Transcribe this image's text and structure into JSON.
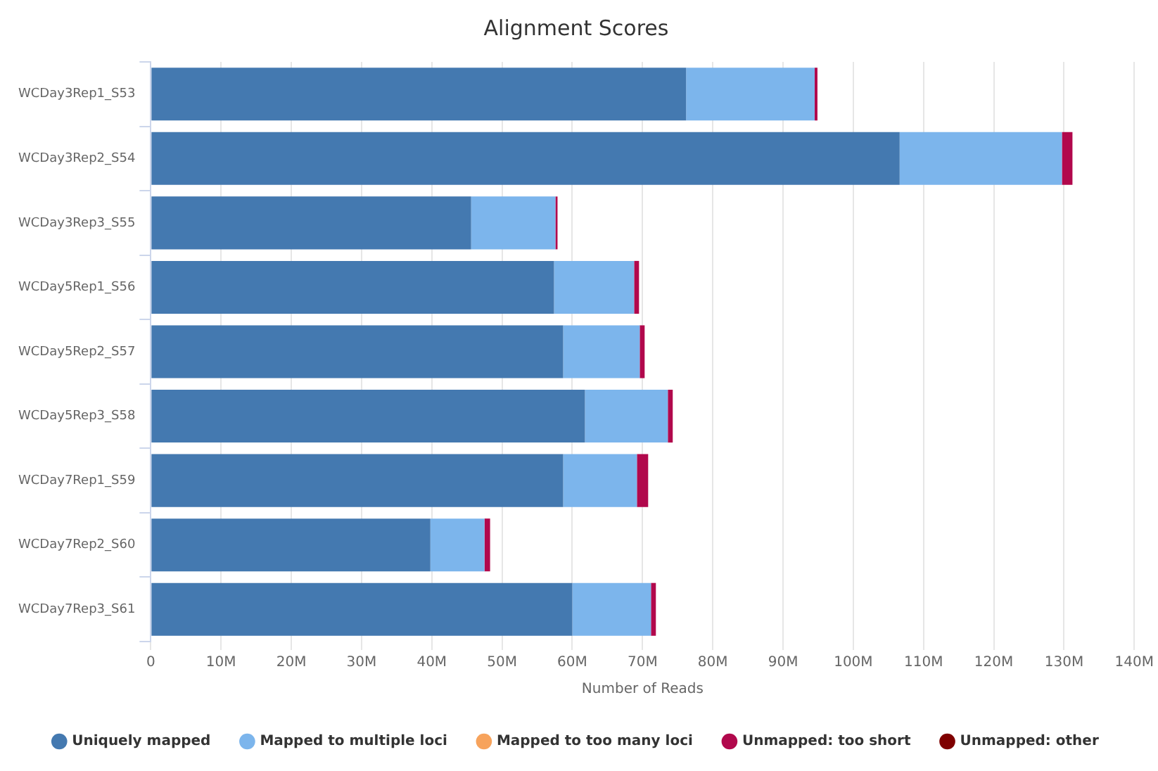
{
  "chart_data": {
    "type": "bar",
    "orientation": "horizontal",
    "stacked": true,
    "title": "Alignment Scores",
    "xlabel": "Number of Reads",
    "categories": [
      "WCDay3Rep1_S53",
      "WCDay3Rep2_S54",
      "WCDay3Rep3_S55",
      "WCDay5Rep1_S56",
      "WCDay5Rep2_S57",
      "WCDay5Rep3_S58",
      "WCDay7Rep1_S59",
      "WCDay7Rep2_S60",
      "WCDay7Rep3_S61"
    ],
    "series": [
      {
        "name": "Uniquely mapped",
        "color": "#4479b0",
        "values": [
          76200000,
          106600000,
          45600000,
          57400000,
          58700000,
          61800000,
          58700000,
          39800000,
          60000000
        ]
      },
      {
        "name": "Mapped to multiple loci",
        "color": "#7cb5ec",
        "values": [
          18300000,
          23100000,
          12000000,
          11400000,
          10900000,
          11800000,
          10500000,
          7700000,
          11200000
        ]
      },
      {
        "name": "Mapped to too many loci",
        "color": "#f7a35c",
        "values": [
          0,
          0,
          0,
          0,
          0,
          0,
          0,
          0,
          0
        ]
      },
      {
        "name": "Unmapped: too short",
        "color": "#b1084c",
        "values": [
          400000,
          1500000,
          300000,
          700000,
          700000,
          700000,
          1600000,
          800000,
          700000
        ]
      },
      {
        "name": "Unmapped: other",
        "color": "#7f0000",
        "values": [
          0,
          0,
          0,
          0,
          0,
          0,
          0,
          0,
          0
        ]
      }
    ],
    "xlim": [
      0,
      140000000
    ],
    "xticks": [
      0,
      {
        "value": 10000000,
        "label": "10M"
      },
      {
        "value": 20000000,
        "label": "20M"
      },
      {
        "value": 30000000,
        "label": "30M"
      },
      {
        "value": 40000000,
        "label": "40M"
      },
      {
        "value": 50000000,
        "label": "50M"
      },
      {
        "value": 60000000,
        "label": "60M"
      },
      {
        "value": 70000000,
        "label": "70M"
      },
      {
        "value": 80000000,
        "label": "80M"
      },
      {
        "value": 90000000,
        "label": "90M"
      },
      {
        "value": 100000000,
        "label": "100M"
      },
      {
        "value": 110000000,
        "label": "110M"
      },
      {
        "value": 120000000,
        "label": "120M"
      },
      {
        "value": 130000000,
        "label": "130M"
      },
      {
        "value": 140000000,
        "label": "140M"
      }
    ],
    "grid": "x",
    "legend": "bottom"
  }
}
